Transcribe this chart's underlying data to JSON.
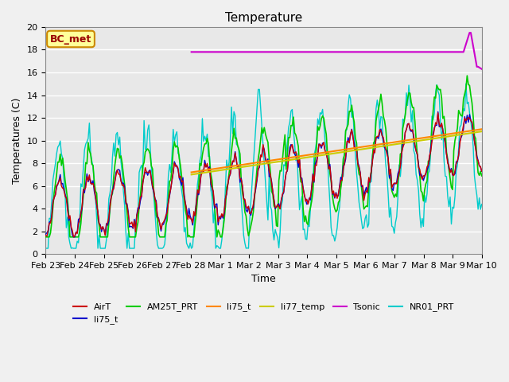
{
  "title": "Temperature",
  "xlabel": "Time",
  "ylabel": "Temperatures (C)",
  "ylim": [
    0,
    20
  ],
  "bg_color": "#e8e8e8",
  "grid_color": "#ffffff",
  "annotation_text": "BC_met",
  "annotation_bg": "#ffff99",
  "annotation_border": "#cc8800",
  "annotation_text_color": "#990000",
  "legend_labels": [
    "AirT",
    "li75_t",
    "AM25T_PRT",
    "li75_t",
    "li77_temp",
    "Tsonic",
    "NR01_PRT"
  ],
  "legend_colors": [
    "#cc0000",
    "#0000cc",
    "#00cc00",
    "#ff8800",
    "#cccc00",
    "#cc00cc",
    "#00cccc"
  ],
  "xtick_labels": [
    "Feb 23",
    "Feb 24",
    "Feb 25",
    "Feb 26",
    "Feb 27",
    "Feb 28",
    "Mar 1",
    "Mar 2",
    "Mar 3",
    "Mar 4",
    "Mar 5",
    "Mar 6",
    "Mar 7",
    "Mar 8",
    "Mar 9",
    "Mar 10"
  ],
  "xtick_positions": [
    0,
    1,
    2,
    3,
    4,
    5,
    6,
    7,
    8,
    9,
    10,
    11,
    12,
    13,
    14,
    15
  ]
}
